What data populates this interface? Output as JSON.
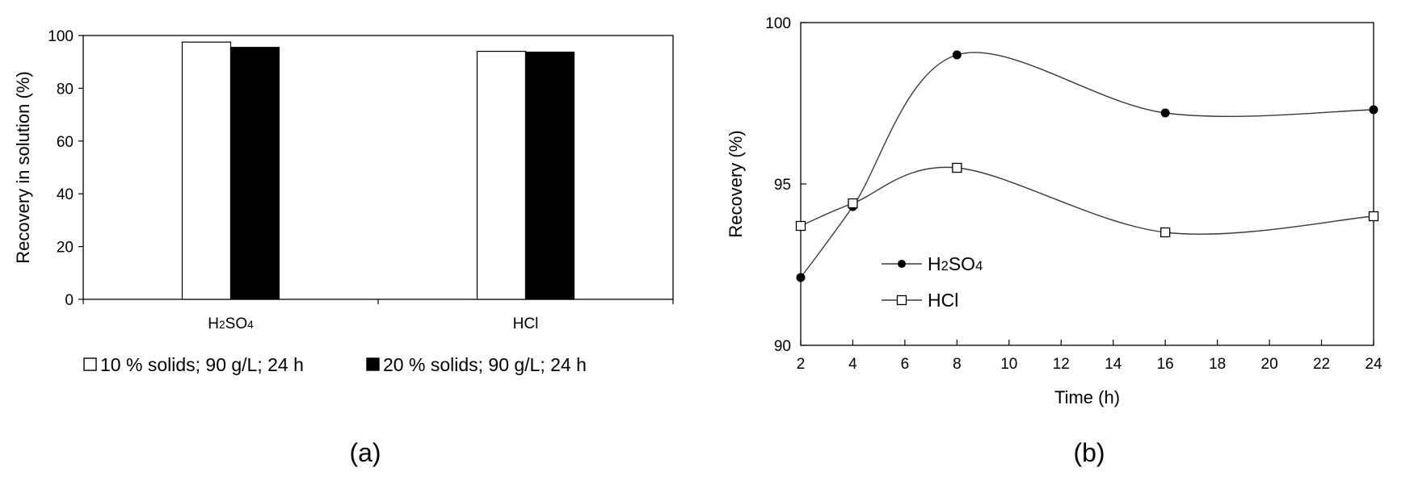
{
  "chart_data": [
    {
      "panel_label": "(a)",
      "type": "bar",
      "categories": [
        "H2SO4",
        "HCl"
      ],
      "category_display": [
        {
          "pre": "H",
          "sub1": "2",
          "mid": "SO",
          "sub2": "4"
        },
        {
          "pre": "HCl",
          "sub1": "",
          "mid": "",
          "sub2": ""
        }
      ],
      "series": [
        {
          "name": "10 % solids; 90 g/L; 24 h",
          "values": [
            97.5,
            94.0
          ],
          "fill": "#ffffff"
        },
        {
          "name": "20 % solids; 90 g/L; 24 h",
          "values": [
            95.5,
            93.7
          ],
          "fill": "#000000"
        }
      ],
      "xlabel": "",
      "ylabel": "Recovery in solution  (%)",
      "ylim": [
        0,
        100
      ],
      "yticks": [
        "0",
        "20",
        "40",
        "60",
        "80",
        "100"
      ],
      "grid": false,
      "legend_position": "bottom"
    },
    {
      "panel_label": "(b)",
      "type": "line",
      "x": [
        2,
        4,
        8,
        16,
        24
      ],
      "series": [
        {
          "name_display": {
            "pre": "H",
            "sub1": "2",
            "mid": "SO",
            "sub2": "4"
          },
          "values": [
            92.1,
            94.3,
            99.0,
            97.2,
            97.3
          ],
          "marker": "filled-circle"
        },
        {
          "name_display": {
            "pre": "HCl",
            "sub1": "",
            "mid": "",
            "sub2": ""
          },
          "values": [
            93.7,
            94.4,
            95.5,
            93.5,
            94.0
          ],
          "marker": "open-square"
        }
      ],
      "xlabel": "Time  (h)",
      "ylabel": "Recovery  (%)",
      "xlim": [
        2,
        24
      ],
      "ylim": [
        90,
        100
      ],
      "xticks": [
        "2",
        "4",
        "6",
        "8",
        "10",
        "12",
        "14",
        "16",
        "18",
        "20",
        "22",
        "24"
      ],
      "yticks": [
        "90",
        "95",
        "100"
      ],
      "grid": false,
      "legend_position": "center-left"
    }
  ]
}
